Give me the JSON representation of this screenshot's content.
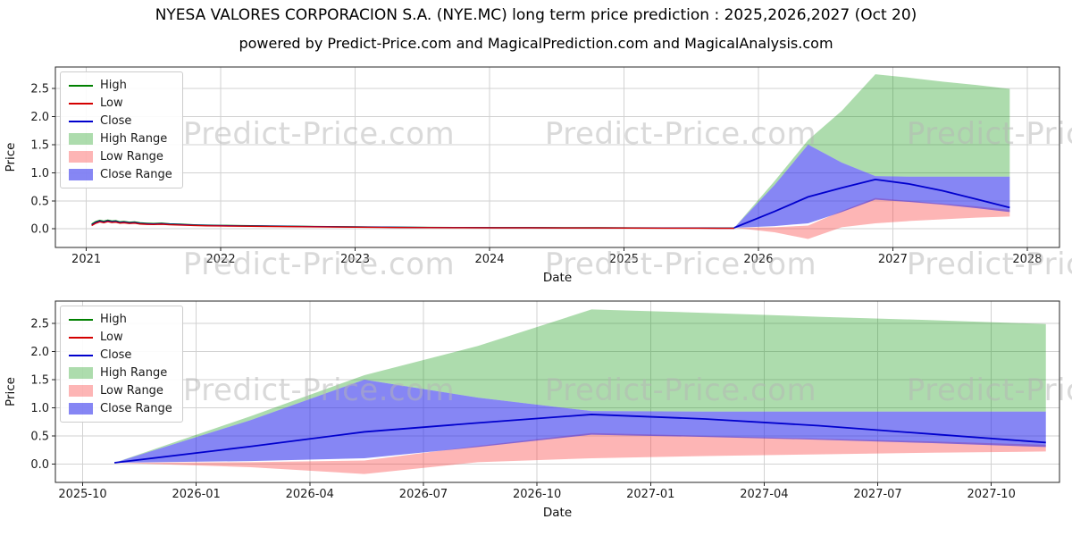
{
  "header": {
    "title": "NYESA VALORES CORPORACION S.A. (NYE.MC) long term price prediction : 2025,2026,2027 (Oct 20)",
    "subtitle": "powered by Predict-Price.com and MagicalPrediction.com and MagicalAnalysis.com"
  },
  "watermark": {
    "text": "Predict-Price.com",
    "color": "#b5b5b5"
  },
  "legend": {
    "items": [
      {
        "label": "High",
        "type": "line",
        "color": "#008000"
      },
      {
        "label": "Low",
        "type": "line",
        "color": "#d40000"
      },
      {
        "label": "Close",
        "type": "line",
        "color": "#0000cd"
      },
      {
        "label": "High Range",
        "type": "fill",
        "color": "rgba(0,145,0,0.32)"
      },
      {
        "label": "Low Range",
        "type": "fill",
        "color": "rgba(250,60,60,0.38)"
      },
      {
        "label": "Close Range",
        "type": "fill",
        "color": "rgba(35,35,235,0.55)"
      }
    ]
  },
  "chart_data": {
    "type": "area",
    "xlabel": "Date",
    "ylabel": "Price",
    "historical": {
      "x": [
        2021.04,
        2021.07,
        2021.1,
        2021.13,
        2021.16,
        2021.19,
        2021.22,
        2021.25,
        2021.28,
        2021.32,
        2021.36,
        2021.4,
        2021.45,
        2021.5,
        2021.56,
        2021.62,
        2021.7,
        2021.8,
        2021.9,
        2022.0,
        2022.15,
        2022.3,
        2022.5,
        2022.7,
        2022.9,
        2023.1,
        2023.3,
        2023.55,
        2023.8,
        2024.05,
        2024.3,
        2024.55,
        2024.8,
        2025.05,
        2025.3,
        2025.55,
        2025.7,
        2025.82
      ],
      "high": [
        0.085,
        0.128,
        0.152,
        0.136,
        0.155,
        0.14,
        0.145,
        0.125,
        0.132,
        0.118,
        0.123,
        0.107,
        0.1,
        0.095,
        0.101,
        0.09,
        0.083,
        0.073,
        0.067,
        0.063,
        0.058,
        0.054,
        0.049,
        0.043,
        0.039,
        0.035,
        0.03,
        0.027,
        0.024,
        0.023,
        0.022,
        0.021,
        0.02,
        0.018,
        0.017,
        0.016,
        0.015,
        0.014
      ],
      "close": [
        0.07,
        0.112,
        0.138,
        0.121,
        0.142,
        0.126,
        0.132,
        0.112,
        0.12,
        0.106,
        0.112,
        0.096,
        0.09,
        0.086,
        0.092,
        0.082,
        0.076,
        0.066,
        0.061,
        0.058,
        0.053,
        0.05,
        0.045,
        0.04,
        0.036,
        0.032,
        0.028,
        0.025,
        0.022,
        0.021,
        0.02,
        0.019,
        0.018,
        0.016,
        0.015,
        0.014,
        0.013,
        0.012
      ],
      "low": [
        0.06,
        0.1,
        0.126,
        0.11,
        0.13,
        0.114,
        0.12,
        0.102,
        0.109,
        0.096,
        0.102,
        0.087,
        0.081,
        0.078,
        0.083,
        0.074,
        0.069,
        0.06,
        0.055,
        0.052,
        0.048,
        0.045,
        0.041,
        0.036,
        0.032,
        0.029,
        0.025,
        0.022,
        0.02,
        0.019,
        0.018,
        0.017,
        0.016,
        0.014,
        0.013,
        0.012,
        0.011,
        0.01
      ]
    },
    "forecast": {
      "x": [
        2025.82,
        2026.12,
        2026.37,
        2026.62,
        2026.87,
        2027.12,
        2027.37,
        2027.62,
        2027.87
      ],
      "close": [
        0.02,
        0.31,
        0.57,
        0.73,
        0.88,
        0.8,
        0.68,
        0.53,
        0.38
      ],
      "close_range": {
        "upper": [
          0.02,
          0.78,
          1.5,
          1.18,
          0.94,
          0.93,
          0.93,
          0.93,
          0.93
        ],
        "lower": [
          0.02,
          0.05,
          0.1,
          0.3,
          0.52,
          0.48,
          0.43,
          0.37,
          0.3
        ]
      },
      "high_range": {
        "upper": [
          0.02,
          0.85,
          1.58,
          2.1,
          2.75,
          2.69,
          2.62,
          2.56,
          2.49
        ],
        "lower": [
          0.02,
          0.78,
          1.5,
          1.18,
          0.94,
          0.93,
          0.93,
          0.93,
          0.93
        ]
      },
      "low_range": {
        "upper": [
          0.02,
          0.03,
          0.06,
          0.32,
          0.55,
          0.5,
          0.45,
          0.4,
          0.34
        ],
        "lower": [
          0.02,
          -0.06,
          -0.18,
          0.03,
          0.1,
          0.14,
          0.17,
          0.2,
          0.22
        ]
      }
    },
    "axes": [
      {
        "name": "long-term",
        "include_historical": true,
        "xlim": [
          2020.77,
          2028.24
        ],
        "ylim": [
          -0.33,
          2.88
        ],
        "xticks": [
          2021,
          2022,
          2023,
          2024,
          2025,
          2026,
          2027,
          2028
        ],
        "xtick_labels": [
          "2021",
          "2022",
          "2023",
          "2024",
          "2025",
          "2026",
          "2027",
          "2028"
        ],
        "yticks": [
          0,
          0.5,
          1,
          1.5,
          2,
          2.5
        ],
        "ytick_labels": [
          "0.0",
          "0.5",
          "1.0",
          "1.5",
          "2.0",
          "2.5"
        ]
      },
      {
        "name": "forecast-detail",
        "include_historical": false,
        "xlim": [
          2025.69,
          2027.9
        ],
        "ylim": [
          -0.33,
          2.9
        ],
        "xticks": [
          2025.75,
          2026.0,
          2026.25,
          2026.5,
          2026.75,
          2027.0,
          2027.25,
          2027.5,
          2027.75
        ],
        "xtick_labels": [
          "2025-10",
          "2026-01",
          "2026-04",
          "2026-07",
          "2026-10",
          "2027-01",
          "2027-04",
          "2027-07",
          "2027-10"
        ],
        "yticks": [
          0,
          0.5,
          1,
          1.5,
          2,
          2.5
        ],
        "ytick_labels": [
          "0.0",
          "0.5",
          "1.0",
          "1.5",
          "2.0",
          "2.5"
        ]
      }
    ]
  }
}
